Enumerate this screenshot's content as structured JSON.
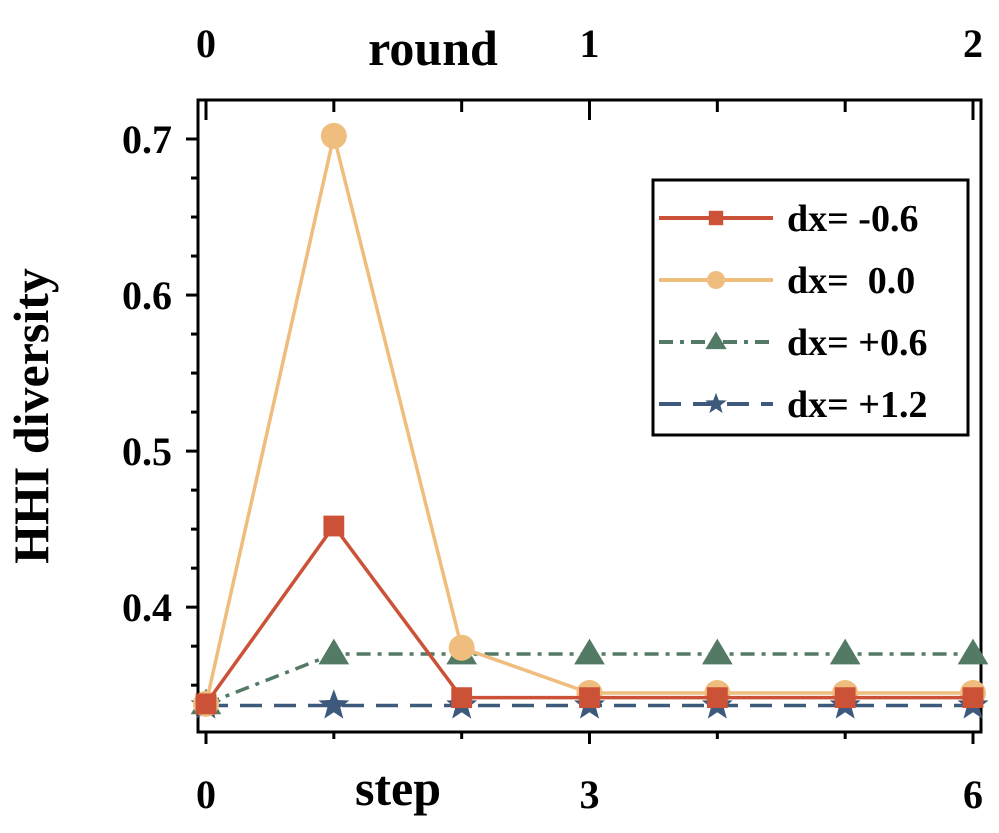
{
  "chart_data": {
    "type": "line",
    "xlabel": "step",
    "x2label": "round",
    "ylabel": "HHI diversity",
    "x": [
      0,
      1,
      2,
      3,
      4,
      5,
      6
    ],
    "xlim": [
      0,
      6
    ],
    "x_ticks": [
      0,
      3,
      6
    ],
    "x2_ticks": [
      0,
      1,
      2
    ],
    "ylim": [
      0.32,
      0.725
    ],
    "y_ticks": [
      0.4,
      0.5,
      0.6,
      0.7
    ],
    "y_tick_labels": [
      "0.4",
      "0.5",
      "0.6",
      "0.7"
    ],
    "x_tick_labels": [
      "0",
      "3",
      "6"
    ],
    "x2_tick_labels": [
      "0",
      "1",
      "2"
    ],
    "grid": false,
    "legend_position": "top-right",
    "series": [
      {
        "name": "dx= -0.6",
        "values": [
          0.338,
          0.452,
          0.342,
          0.342,
          0.342,
          0.342,
          0.342
        ],
        "color": "#cb5237",
        "marker": "square",
        "dash": "solid"
      },
      {
        "name": "dx=  0.0",
        "values": [
          0.338,
          0.702,
          0.374,
          0.345,
          0.345,
          0.345,
          0.345
        ],
        "color": "#efbd7d",
        "marker": "circle",
        "dash": "solid"
      },
      {
        "name": "dx= +0.6",
        "values": [
          0.338,
          0.37,
          0.37,
          0.37,
          0.37,
          0.37,
          0.37
        ],
        "color": "#527a64",
        "marker": "triangle",
        "dash": "dashdot"
      },
      {
        "name": "dx= +1.2",
        "values": [
          0.337,
          0.337,
          0.337,
          0.337,
          0.337,
          0.337,
          0.337
        ],
        "color": "#3d5a7d",
        "marker": "star",
        "dash": "dashed"
      }
    ]
  }
}
